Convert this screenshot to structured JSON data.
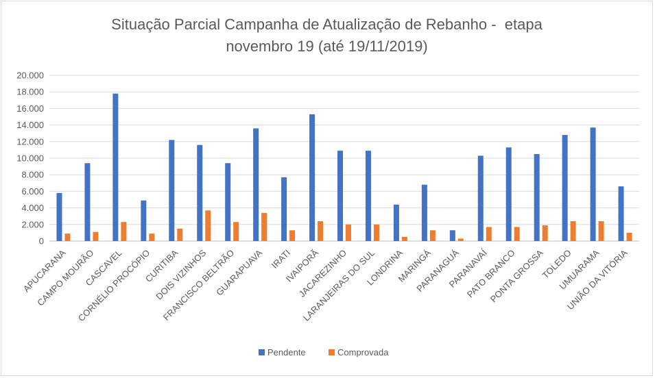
{
  "chart_data": {
    "type": "bar",
    "title_line1": "Situação Parcial Campanha de Atualização de Rebanho -  etapa",
    "title_line2": "novembro 19 (até 19/11/2019)",
    "categories": [
      "APUCARANA",
      "CAMPO MOURÃO",
      "CASCAVEL",
      "CORNÉLIO PROCÓPIO",
      "CURITIBA",
      "DOIS VIZINHOS",
      "FRANCISCO BELTRÃO",
      "GUARAPUAVA",
      "IRATI",
      "IVAIPORÃ",
      "JACAREZINHO",
      "LARANJEIRAS DO SUL",
      "LONDRINA",
      "MARINGÁ",
      "PARANAGUÁ",
      "PARANAVAÍ",
      "PATO BRANCO",
      "PONTA GROSSA",
      "TOLEDO",
      "UMUARAMA",
      "UNIÃO DA VITÓRIA"
    ],
    "series": [
      {
        "name": "Pendente",
        "color": "#4472c4",
        "values": [
          5800,
          9400,
          17800,
          4900,
          12200,
          11600,
          9400,
          13600,
          7700,
          15300,
          10900,
          10900,
          4400,
          6800,
          1300,
          10300,
          11300,
          10500,
          12800,
          13700,
          6600
        ]
      },
      {
        "name": "Comprovada",
        "color": "#ed7d31",
        "values": [
          900,
          1100,
          2300,
          900,
          1500,
          3700,
          2300,
          3400,
          1300,
          2400,
          2000,
          2000,
          500,
          1300,
          300,
          1700,
          1700,
          1900,
          2400,
          2400,
          1000
        ]
      }
    ],
    "ylim": [
      0,
      20000
    ],
    "yticks": [
      "0",
      "2.000",
      "4.000",
      "6.000",
      "8.000",
      "10.000",
      "12.000",
      "14.000",
      "16.000",
      "18.000",
      "20.000"
    ],
    "grid": true,
    "legend_position": "bottom"
  }
}
